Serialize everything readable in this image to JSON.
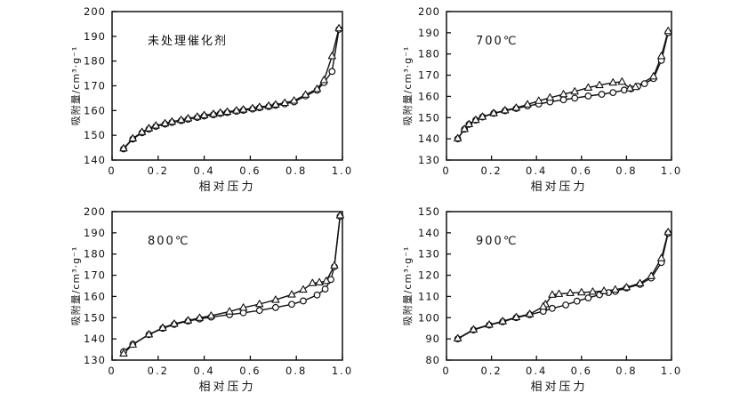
{
  "figure": {
    "background": "#ffffff",
    "ink_color": "#111111",
    "marker_fill": "#ffffff"
  },
  "chart_data": [
    {
      "type": "line",
      "title": "未处理催化剂",
      "xlabel": "相对压力",
      "ylabel": "吸附量/cm³·g⁻¹",
      "xlim": [
        0,
        1.0
      ],
      "ylim": [
        140,
        200
      ],
      "xticks": [
        0,
        0.2,
        0.4,
        0.6,
        0.8,
        1.0
      ],
      "xtick_labels": [
        "0",
        "0.2",
        "0.4",
        "0.6",
        "0.8",
        "1.0"
      ],
      "yticks": [
        140,
        150,
        160,
        170,
        180,
        190,
        200
      ],
      "grid": false,
      "legend": "none",
      "series": [
        {
          "name": "circle-markers",
          "marker": "circle",
          "points": [
            [
              0.05,
              144.5
            ],
            [
              0.09,
              148.5
            ],
            [
              0.13,
              151.0
            ],
            [
              0.16,
              152.5
            ],
            [
              0.19,
              153.6
            ],
            [
              0.23,
              154.5
            ],
            [
              0.26,
              155.2
            ],
            [
              0.3,
              155.9
            ],
            [
              0.33,
              156.5
            ],
            [
              0.37,
              157.2
            ],
            [
              0.4,
              157.8
            ],
            [
              0.44,
              158.3
            ],
            [
              0.47,
              158.8
            ],
            [
              0.5,
              159.2
            ],
            [
              0.54,
              159.7
            ],
            [
              0.57,
              160.1
            ],
            [
              0.61,
              160.6
            ],
            [
              0.64,
              161.1
            ],
            [
              0.68,
              161.6
            ],
            [
              0.71,
              162.1
            ],
            [
              0.75,
              162.7
            ],
            [
              0.79,
              163.5
            ],
            [
              0.84,
              165.9
            ],
            [
              0.89,
              168.2
            ],
            [
              0.92,
              171.3
            ],
            [
              0.955,
              175.8
            ],
            [
              0.985,
              192.8
            ]
          ]
        },
        {
          "name": "triangle-markers",
          "marker": "triangle",
          "points": [
            [
              0.985,
              193.2
            ],
            [
              0.955,
              182.0
            ],
            [
              0.92,
              172.3
            ],
            [
              0.89,
              168.7
            ],
            [
              0.84,
              166.4
            ],
            [
              0.79,
              164.0
            ],
            [
              0.75,
              163.1
            ],
            [
              0.71,
              162.4
            ],
            [
              0.68,
              161.9
            ],
            [
              0.64,
              161.4
            ],
            [
              0.61,
              160.9
            ],
            [
              0.57,
              160.4
            ],
            [
              0.54,
              160.0
            ],
            [
              0.5,
              159.5
            ],
            [
              0.47,
              159.1
            ],
            [
              0.44,
              158.6
            ],
            [
              0.4,
              158.1
            ],
            [
              0.37,
              157.5
            ],
            [
              0.33,
              156.8
            ],
            [
              0.3,
              156.2
            ],
            [
              0.26,
              155.5
            ],
            [
              0.23,
              154.8
            ],
            [
              0.19,
              153.9
            ],
            [
              0.16,
              152.8
            ],
            [
              0.13,
              151.3
            ],
            [
              0.09,
              148.7
            ],
            [
              0.05,
              144.7
            ]
          ]
        }
      ]
    },
    {
      "type": "line",
      "title": "700℃",
      "xlabel": "相对压力",
      "ylabel": "吸附量/cm³·g⁻¹",
      "xlim": [
        0,
        1.0
      ],
      "ylim": [
        130,
        200
      ],
      "xticks": [
        0,
        0.2,
        0.4,
        0.6,
        0.8,
        1.0
      ],
      "xtick_labels": [
        "0",
        "0.2",
        "0.4",
        "0.6",
        "0.8",
        "1.0"
      ],
      "yticks": [
        130,
        140,
        150,
        160,
        170,
        180,
        190,
        200
      ],
      "grid": false,
      "legend": "none",
      "series": [
        {
          "name": "circle-markers",
          "marker": "circle",
          "points": [
            [
              0.05,
              140.0
            ],
            [
              0.08,
              144.5
            ],
            [
              0.1,
              146.8
            ],
            [
              0.13,
              148.8
            ],
            [
              0.16,
              150.3
            ],
            [
              0.21,
              152.0
            ],
            [
              0.26,
              153.2
            ],
            [
              0.31,
              154.3
            ],
            [
              0.36,
              155.5
            ],
            [
              0.41,
              156.4
            ],
            [
              0.46,
              157.4
            ],
            [
              0.52,
              158.4
            ],
            [
              0.57,
              159.2
            ],
            [
              0.63,
              160.2
            ],
            [
              0.69,
              161.0
            ],
            [
              0.74,
              161.8
            ],
            [
              0.79,
              163.0
            ],
            [
              0.82,
              163.6
            ],
            [
              0.85,
              164.8
            ],
            [
              0.88,
              166.0
            ],
            [
              0.92,
              168.4
            ],
            [
              0.955,
              177.0
            ],
            [
              0.985,
              190.0
            ]
          ]
        },
        {
          "name": "triangle-markers",
          "marker": "triangle",
          "points": [
            [
              0.985,
              190.8
            ],
            [
              0.955,
              179.0
            ],
            [
              0.92,
              169.4
            ],
            [
              0.84,
              164.4
            ],
            [
              0.815,
              163.8
            ],
            [
              0.78,
              166.9
            ],
            [
              0.74,
              166.5
            ],
            [
              0.68,
              165.3
            ],
            [
              0.63,
              164.1
            ],
            [
              0.57,
              162.3
            ],
            [
              0.52,
              161.0
            ],
            [
              0.46,
              159.4
            ],
            [
              0.41,
              157.9
            ],
            [
              0.36,
              156.2
            ],
            [
              0.31,
              154.6
            ],
            [
              0.26,
              153.4
            ],
            [
              0.21,
              152.1
            ],
            [
              0.16,
              150.4
            ],
            [
              0.13,
              148.9
            ],
            [
              0.1,
              146.9
            ],
            [
              0.08,
              144.6
            ],
            [
              0.05,
              140.2
            ]
          ]
        }
      ]
    },
    {
      "type": "line",
      "title": "800℃",
      "xlabel": "相对压力",
      "ylabel": "吸附量/cm³·g⁻¹",
      "xlim": [
        0,
        1.0
      ],
      "ylim": [
        130,
        200
      ],
      "xticks": [
        0,
        0.2,
        0.4,
        0.6,
        0.8,
        1.0
      ],
      "xtick_labels": [
        "0",
        "0.2",
        "0.4",
        "0.6",
        "0.8",
        "1.0"
      ],
      "yticks": [
        130,
        140,
        150,
        160,
        170,
        180,
        190,
        200
      ],
      "grid": false,
      "legend": "none",
      "series": [
        {
          "name": "circle-markers",
          "marker": "circle",
          "points": [
            [
              0.05,
              134.0
            ],
            [
              0.09,
              137.5
            ],
            [
              0.16,
              142.0
            ],
            [
              0.22,
              145.0
            ],
            [
              0.27,
              146.8
            ],
            [
              0.33,
              148.4
            ],
            [
              0.38,
              149.4
            ],
            [
              0.43,
              150.3
            ],
            [
              0.51,
              151.4
            ],
            [
              0.57,
              152.3
            ],
            [
              0.64,
              153.4
            ],
            [
              0.71,
              154.8
            ],
            [
              0.78,
              156.3
            ],
            [
              0.83,
              157.9
            ],
            [
              0.89,
              160.7
            ],
            [
              0.925,
              163.5
            ],
            [
              0.95,
              168.0
            ],
            [
              0.965,
              174.0
            ],
            [
              0.99,
              197.8
            ]
          ]
        },
        {
          "name": "triangle-markers",
          "marker": "triangle",
          "points": [
            [
              0.99,
              198.2
            ],
            [
              0.965,
              174.5
            ],
            [
              0.93,
              167.3
            ],
            [
              0.9,
              166.6
            ],
            [
              0.87,
              166.3
            ],
            [
              0.83,
              163.2
            ],
            [
              0.78,
              160.9
            ],
            [
              0.71,
              158.4
            ],
            [
              0.64,
              156.4
            ],
            [
              0.57,
              154.7
            ],
            [
              0.51,
              152.9
            ],
            [
              0.43,
              150.9
            ],
            [
              0.38,
              149.9
            ],
            [
              0.33,
              148.7
            ],
            [
              0.27,
              147.1
            ],
            [
              0.22,
              145.2
            ],
            [
              0.16,
              142.1
            ],
            [
              0.09,
              137.3
            ],
            [
              0.05,
              133.1
            ]
          ]
        }
      ]
    },
    {
      "type": "line",
      "title": "900℃",
      "xlabel": "相对压力",
      "ylabel": "吸附量/cm³·g⁻¹",
      "xlim": [
        0,
        1.0
      ],
      "ylim": [
        80,
        150
      ],
      "xticks": [
        0,
        0.2,
        0.4,
        0.6,
        0.8,
        1.0
      ],
      "xtick_labels": [
        "0",
        "0.2",
        "0.4",
        "0.6",
        "0.8",
        "1.0"
      ],
      "yticks": [
        80,
        90,
        100,
        110,
        120,
        130,
        140,
        150
      ],
      "grid": false,
      "legend": "none",
      "series": [
        {
          "name": "circle-markers",
          "marker": "circle",
          "points": [
            [
              0.05,
              90.0
            ],
            [
              0.12,
              94.2
            ],
            [
              0.19,
              96.5
            ],
            [
              0.25,
              98.1
            ],
            [
              0.31,
              100.0
            ],
            [
              0.37,
              101.4
            ],
            [
              0.43,
              103.0
            ],
            [
              0.47,
              104.4
            ],
            [
              0.53,
              106.0
            ],
            [
              0.58,
              107.8
            ],
            [
              0.63,
              109.3
            ],
            [
              0.68,
              110.8
            ],
            [
              0.72,
              111.8
            ],
            [
              0.75,
              112.4
            ],
            [
              0.8,
              114.0
            ],
            [
              0.86,
              115.7
            ],
            [
              0.91,
              118.7
            ],
            [
              0.955,
              126.0
            ],
            [
              0.985,
              139.8
            ]
          ]
        },
        {
          "name": "triangle-markers",
          "marker": "triangle",
          "points": [
            [
              0.985,
              140.3
            ],
            [
              0.955,
              128.0
            ],
            [
              0.91,
              119.6
            ],
            [
              0.86,
              116.2
            ],
            [
              0.8,
              114.3
            ],
            [
              0.75,
              113.2
            ],
            [
              0.7,
              112.6
            ],
            [
              0.65,
              112.2
            ],
            [
              0.6,
              111.9
            ],
            [
              0.55,
              111.6
            ],
            [
              0.5,
              111.2
            ],
            [
              0.47,
              110.8
            ],
            [
              0.44,
              106.3
            ],
            [
              0.43,
              105.2
            ],
            [
              0.37,
              101.7
            ],
            [
              0.31,
              100.2
            ],
            [
              0.25,
              98.3
            ],
            [
              0.19,
              96.7
            ],
            [
              0.12,
              94.4
            ],
            [
              0.05,
              90.2
            ]
          ]
        }
      ]
    }
  ]
}
